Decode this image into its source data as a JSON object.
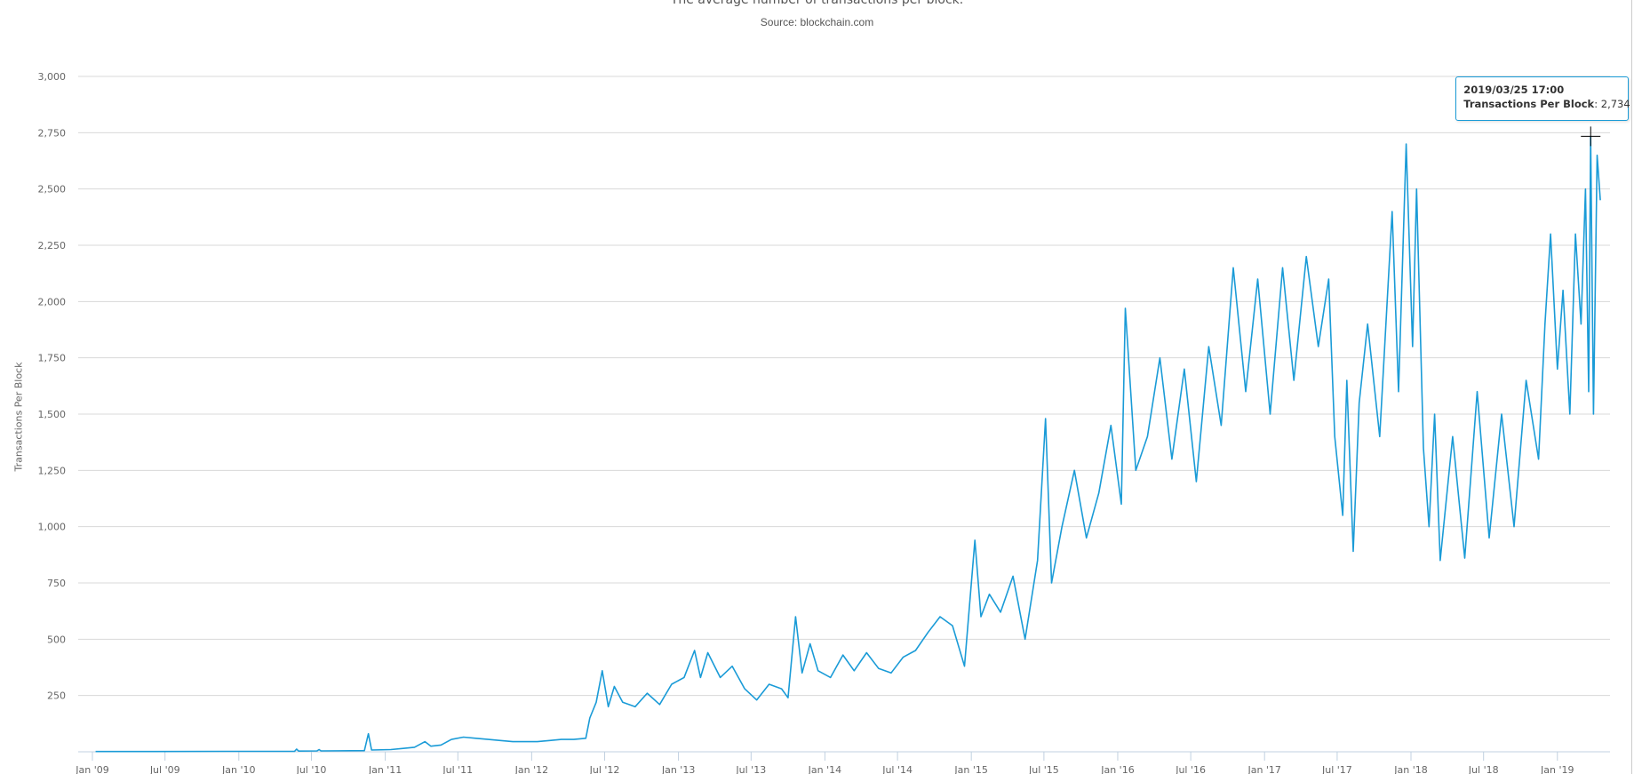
{
  "chart_data": {
    "type": "line",
    "title": "The average number of transactions per block.",
    "subtitle": "Source: blockchain.com",
    "xlabel": "",
    "ylabel": "Transactions Per Block",
    "ylim": [
      0,
      3000
    ],
    "xlim": [
      "2009-01-01",
      "2019-04-20"
    ],
    "grid": true,
    "legend": "none",
    "color": "#1a9bd7",
    "y_ticks": [
      "250",
      "500",
      "750",
      "1,000",
      "1,250",
      "1,500",
      "1,750",
      "2,000",
      "2,250",
      "2,500",
      "2,750",
      "3,000"
    ],
    "x_ticks": [
      {
        "label": "Jan '09",
        "date": "2009-01-01"
      },
      {
        "label": "Jul '09",
        "date": "2009-07-01"
      },
      {
        "label": "Jan '10",
        "date": "2010-01-01"
      },
      {
        "label": "Jul '10",
        "date": "2010-07-01"
      },
      {
        "label": "Jan '11",
        "date": "2011-01-01"
      },
      {
        "label": "Jul '11",
        "date": "2011-07-01"
      },
      {
        "label": "Jan '12",
        "date": "2012-01-01"
      },
      {
        "label": "Jul '12",
        "date": "2012-07-01"
      },
      {
        "label": "Jan '13",
        "date": "2013-01-01"
      },
      {
        "label": "Jul '13",
        "date": "2013-07-01"
      },
      {
        "label": "Jan '14",
        "date": "2014-01-01"
      },
      {
        "label": "Jul '14",
        "date": "2014-07-01"
      },
      {
        "label": "Jan '15",
        "date": "2015-01-01"
      },
      {
        "label": "Jul '15",
        "date": "2015-07-01"
      },
      {
        "label": "Jan '16",
        "date": "2016-01-01"
      },
      {
        "label": "Jul '16",
        "date": "2016-07-01"
      },
      {
        "label": "Jan '17",
        "date": "2017-01-01"
      },
      {
        "label": "Jul '17",
        "date": "2017-07-01"
      },
      {
        "label": "Jan '18",
        "date": "2018-01-01"
      },
      {
        "label": "Jul '18",
        "date": "2018-07-01"
      },
      {
        "label": "Jan '19",
        "date": "2019-01-01"
      }
    ],
    "series": [
      {
        "points": [
          [
            "2009-01-09",
            1
          ],
          [
            "2009-06-01",
            1
          ],
          [
            "2009-12-01",
            2
          ],
          [
            "2010-05-20",
            2
          ],
          [
            "2010-05-25",
            12
          ],
          [
            "2010-05-30",
            3
          ],
          [
            "2010-07-15",
            4
          ],
          [
            "2010-07-20",
            10
          ],
          [
            "2010-07-25",
            4
          ],
          [
            "2010-11-10",
            5
          ],
          [
            "2010-11-20",
            80
          ],
          [
            "2010-11-28",
            8
          ],
          [
            "2011-01-15",
            10
          ],
          [
            "2011-02-15",
            15
          ],
          [
            "2011-03-15",
            20
          ],
          [
            "2011-04-10",
            45
          ],
          [
            "2011-04-25",
            25
          ],
          [
            "2011-05-20",
            30
          ],
          [
            "2011-06-15",
            55
          ],
          [
            "2011-07-15",
            65
          ],
          [
            "2011-08-15",
            60
          ],
          [
            "2011-09-15",
            55
          ],
          [
            "2011-10-15",
            50
          ],
          [
            "2011-11-15",
            45
          ],
          [
            "2011-12-15",
            45
          ],
          [
            "2012-01-15",
            45
          ],
          [
            "2012-02-15",
            50
          ],
          [
            "2012-03-15",
            55
          ],
          [
            "2012-04-15",
            55
          ],
          [
            "2012-05-15",
            60
          ],
          [
            "2012-05-25",
            150
          ],
          [
            "2012-06-10",
            220
          ],
          [
            "2012-06-25",
            360
          ],
          [
            "2012-07-10",
            200
          ],
          [
            "2012-07-25",
            290
          ],
          [
            "2012-08-15",
            220
          ],
          [
            "2012-09-15",
            200
          ],
          [
            "2012-10-15",
            260
          ],
          [
            "2012-11-15",
            210
          ],
          [
            "2012-12-15",
            300
          ],
          [
            "2013-01-15",
            330
          ],
          [
            "2013-02-10",
            450
          ],
          [
            "2013-02-25",
            330
          ],
          [
            "2013-03-15",
            440
          ],
          [
            "2013-04-15",
            330
          ],
          [
            "2013-05-15",
            380
          ],
          [
            "2013-06-15",
            280
          ],
          [
            "2013-07-15",
            230
          ],
          [
            "2013-08-15",
            300
          ],
          [
            "2013-09-15",
            280
          ],
          [
            "2013-10-01",
            240
          ],
          [
            "2013-10-20",
            600
          ],
          [
            "2013-11-05",
            350
          ],
          [
            "2013-11-25",
            480
          ],
          [
            "2013-12-15",
            360
          ],
          [
            "2014-01-15",
            330
          ],
          [
            "2014-02-15",
            430
          ],
          [
            "2014-03-15",
            360
          ],
          [
            "2014-04-15",
            440
          ],
          [
            "2014-05-15",
            370
          ],
          [
            "2014-06-15",
            350
          ],
          [
            "2014-07-15",
            420
          ],
          [
            "2014-08-15",
            450
          ],
          [
            "2014-09-15",
            530
          ],
          [
            "2014-10-15",
            600
          ],
          [
            "2014-11-15",
            560
          ],
          [
            "2014-12-15",
            380
          ],
          [
            "2015-01-10",
            940
          ],
          [
            "2015-01-25",
            600
          ],
          [
            "2015-02-15",
            700
          ],
          [
            "2015-03-15",
            620
          ],
          [
            "2015-04-15",
            780
          ],
          [
            "2015-05-15",
            500
          ],
          [
            "2015-06-15",
            850
          ],
          [
            "2015-07-05",
            1480
          ],
          [
            "2015-07-20",
            750
          ],
          [
            "2015-08-15",
            1000
          ],
          [
            "2015-09-15",
            1250
          ],
          [
            "2015-10-15",
            950
          ],
          [
            "2015-11-15",
            1150
          ],
          [
            "2015-12-15",
            1450
          ],
          [
            "2016-01-10",
            1100
          ],
          [
            "2016-01-20",
            1970
          ],
          [
            "2016-02-15",
            1250
          ],
          [
            "2016-03-15",
            1400
          ],
          [
            "2016-04-15",
            1750
          ],
          [
            "2016-05-15",
            1300
          ],
          [
            "2016-06-15",
            1700
          ],
          [
            "2016-07-15",
            1200
          ],
          [
            "2016-08-15",
            1800
          ],
          [
            "2016-09-15",
            1450
          ],
          [
            "2016-10-15",
            2150
          ],
          [
            "2016-11-15",
            1600
          ],
          [
            "2016-12-15",
            2100
          ],
          [
            "2017-01-15",
            1500
          ],
          [
            "2017-02-15",
            2150
          ],
          [
            "2017-03-15",
            1650
          ],
          [
            "2017-04-15",
            2200
          ],
          [
            "2017-05-15",
            1800
          ],
          [
            "2017-06-10",
            2100
          ],
          [
            "2017-06-25",
            1400
          ],
          [
            "2017-07-15",
            1050
          ],
          [
            "2017-07-25",
            1650
          ],
          [
            "2017-08-10",
            890
          ],
          [
            "2017-08-25",
            1550
          ],
          [
            "2017-09-15",
            1900
          ],
          [
            "2017-10-15",
            1400
          ],
          [
            "2017-11-15",
            2400
          ],
          [
            "2017-12-01",
            1600
          ],
          [
            "2017-12-20",
            2700
          ],
          [
            "2018-01-05",
            1800
          ],
          [
            "2018-01-15",
            2500
          ],
          [
            "2018-02-01",
            1350
          ],
          [
            "2018-02-15",
            1000
          ],
          [
            "2018-03-01",
            1500
          ],
          [
            "2018-03-15",
            850
          ],
          [
            "2018-04-15",
            1400
          ],
          [
            "2018-05-15",
            860
          ],
          [
            "2018-06-15",
            1600
          ],
          [
            "2018-07-15",
            950
          ],
          [
            "2018-08-15",
            1500
          ],
          [
            "2018-09-15",
            1000
          ],
          [
            "2018-10-15",
            1650
          ],
          [
            "2018-11-15",
            1300
          ],
          [
            "2018-12-01",
            1900
          ],
          [
            "2018-12-15",
            2300
          ],
          [
            "2019-01-01",
            1700
          ],
          [
            "2019-01-15",
            2050
          ],
          [
            "2019-02-01",
            1500
          ],
          [
            "2019-02-15",
            2300
          ],
          [
            "2019-03-01",
            1900
          ],
          [
            "2019-03-12",
            2500
          ],
          [
            "2019-03-20",
            1600
          ],
          [
            "2019-03-25",
            2734
          ],
          [
            "2019-04-01",
            1500
          ],
          [
            "2019-04-10",
            2650
          ],
          [
            "2019-04-18",
            2450
          ]
        ]
      }
    ],
    "tooltip": {
      "date": "2019/03/25 17:00",
      "series_label": "Transactions Per Block",
      "value": "2,734",
      "value_num": 2734,
      "point_date": "2019-03-25"
    }
  }
}
